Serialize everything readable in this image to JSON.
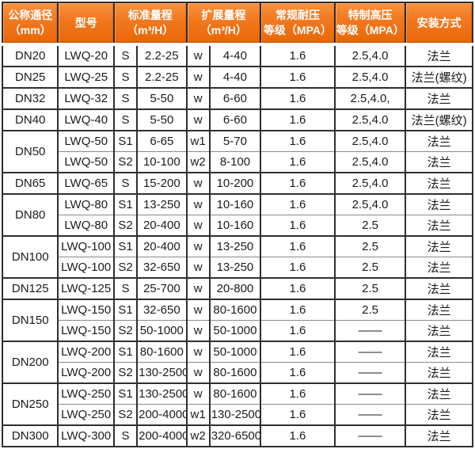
{
  "table": {
    "headers": {
      "diameter": "公称通径\n（mm）",
      "model": "型号",
      "std_range": "标准量程\n（m³/H）",
      "ext_range": "扩展量程\n（m³/H）",
      "pressure": "常规耐压\n等级（MPA）",
      "high_pressure": "特制高压\n等级（MPA）",
      "install": "安装方式"
    },
    "accent_color": "#f1771d",
    "grid_color": "#2f2f2f",
    "rows": [
      {
        "dn": "DN20",
        "model": "LWQ-20",
        "s": "S",
        "std": "2.2-25",
        "w": "w",
        "ext": "4-40",
        "pressure": "1.6",
        "high_pressure": "2.5,4.0",
        "install": "法兰"
      },
      {
        "dn": "DN25",
        "model": "LWQ-25",
        "s": "S",
        "std": "2.2-25",
        "w": "w",
        "ext": "4-40",
        "pressure": "1.6",
        "high_pressure": "2.5,4.0",
        "install": "法兰(螺纹)"
      },
      {
        "dn": "DN32",
        "model": "LWQ-32",
        "s": "S",
        "std": "5-50",
        "w": "w",
        "ext": "6-60",
        "pressure": "1.6",
        "high_pressure": "2.5,4.0,",
        "install": "法兰"
      },
      {
        "dn": "DN40",
        "model": "LWQ-40",
        "s": "S",
        "std": "5-50",
        "w": "w",
        "ext": "6-60",
        "pressure": "1.6",
        "high_pressure": "2.5,4.0",
        "install": "法兰(螺纹)"
      },
      {
        "dn": "DN50",
        "model": "LWQ-50",
        "s": "S1",
        "std": "6-65",
        "w": "w1",
        "ext": "5-70",
        "pressure": "1.6",
        "high_pressure": "2.5,4.0",
        "install": "法兰"
      },
      {
        "model": "LWQ-50",
        "s": "S2",
        "std": "10-100",
        "w": "w2",
        "ext": "8-100",
        "pressure": "1.6",
        "high_pressure": "2.5,4.0",
        "install": "法兰"
      },
      {
        "dn": "DN65",
        "model": "LWQ-65",
        "s": "S",
        "std": "15-200",
        "w": "w",
        "ext": "10-200",
        "pressure": "1.6",
        "high_pressure": "2.5,4.0",
        "install": "法兰"
      },
      {
        "dn": "DN80",
        "model": "LWQ-80",
        "s": "S1",
        "std": "13-250",
        "w": "w",
        "ext": "10-160",
        "pressure": "1.6",
        "high_pressure": "2.5,4.0",
        "install": "法兰"
      },
      {
        "model": "LWQ-80",
        "s": "S2",
        "std": "20-400",
        "w": "w",
        "ext": "10-160",
        "pressure": "1.6",
        "high_pressure": "2.5",
        "install": "法兰"
      },
      {
        "dn": "DN100",
        "model": "LWQ-100",
        "s": "S1",
        "std": "20-400",
        "w": "w",
        "ext": "13-250",
        "pressure": "1.6",
        "high_pressure": "2.5",
        "install": "法兰"
      },
      {
        "model": "LWQ-100",
        "s": "S2",
        "std": "32-650",
        "w": "w",
        "ext": "13-250",
        "pressure": "1.6",
        "high_pressure": "2.5",
        "install": "法兰"
      },
      {
        "dn": "DN125",
        "model": "LWQ-125",
        "s": "S",
        "std": "25-700",
        "w": "w",
        "ext": "20-800",
        "pressure": "1.6",
        "high_pressure": "2.5",
        "install": "法兰"
      },
      {
        "dn": "DN150",
        "model": "LWQ-150",
        "s": "S1",
        "std": "32-650",
        "w": "w",
        "ext": "80-1600",
        "pressure": "1.6",
        "high_pressure": "2.5",
        "install": "法兰"
      },
      {
        "model": "LWQ-150",
        "s": "S2",
        "std": "50-1000",
        "w": "w",
        "ext": "50-1000",
        "pressure": "1.6",
        "high_pressure": "——",
        "install": "法兰"
      },
      {
        "dn": "DN200",
        "model": "LWQ-200",
        "s": "S1",
        "std": "80-1600",
        "w": "w",
        "ext": "50-1000",
        "pressure": "1.6",
        "high_pressure": "——",
        "install": "法兰"
      },
      {
        "model": "LWQ-200",
        "s": "S2",
        "std": "130-2500",
        "w": "w",
        "ext": "80-1600",
        "pressure": "1.6",
        "high_pressure": "——",
        "install": "法兰"
      },
      {
        "dn": "DN250",
        "model": "LWQ-250",
        "s": "S1",
        "std": "130-2500",
        "w": "w",
        "ext": "80-1600",
        "pressure": "1.6",
        "high_pressure": "——",
        "install": "法兰"
      },
      {
        "model": "LWQ-250",
        "s": "S2",
        "std": "200-4000",
        "w": "w1",
        "ext": "130-2500",
        "pressure": "1.6",
        "high_pressure": "——",
        "install": "法兰"
      },
      {
        "dn": "DN300",
        "model": "LWQ-300",
        "s": "S",
        "std": "200-4000",
        "w": "w2",
        "ext": "320-6500",
        "pressure": "1.6",
        "high_pressure": "——",
        "install": "法兰"
      }
    ]
  }
}
